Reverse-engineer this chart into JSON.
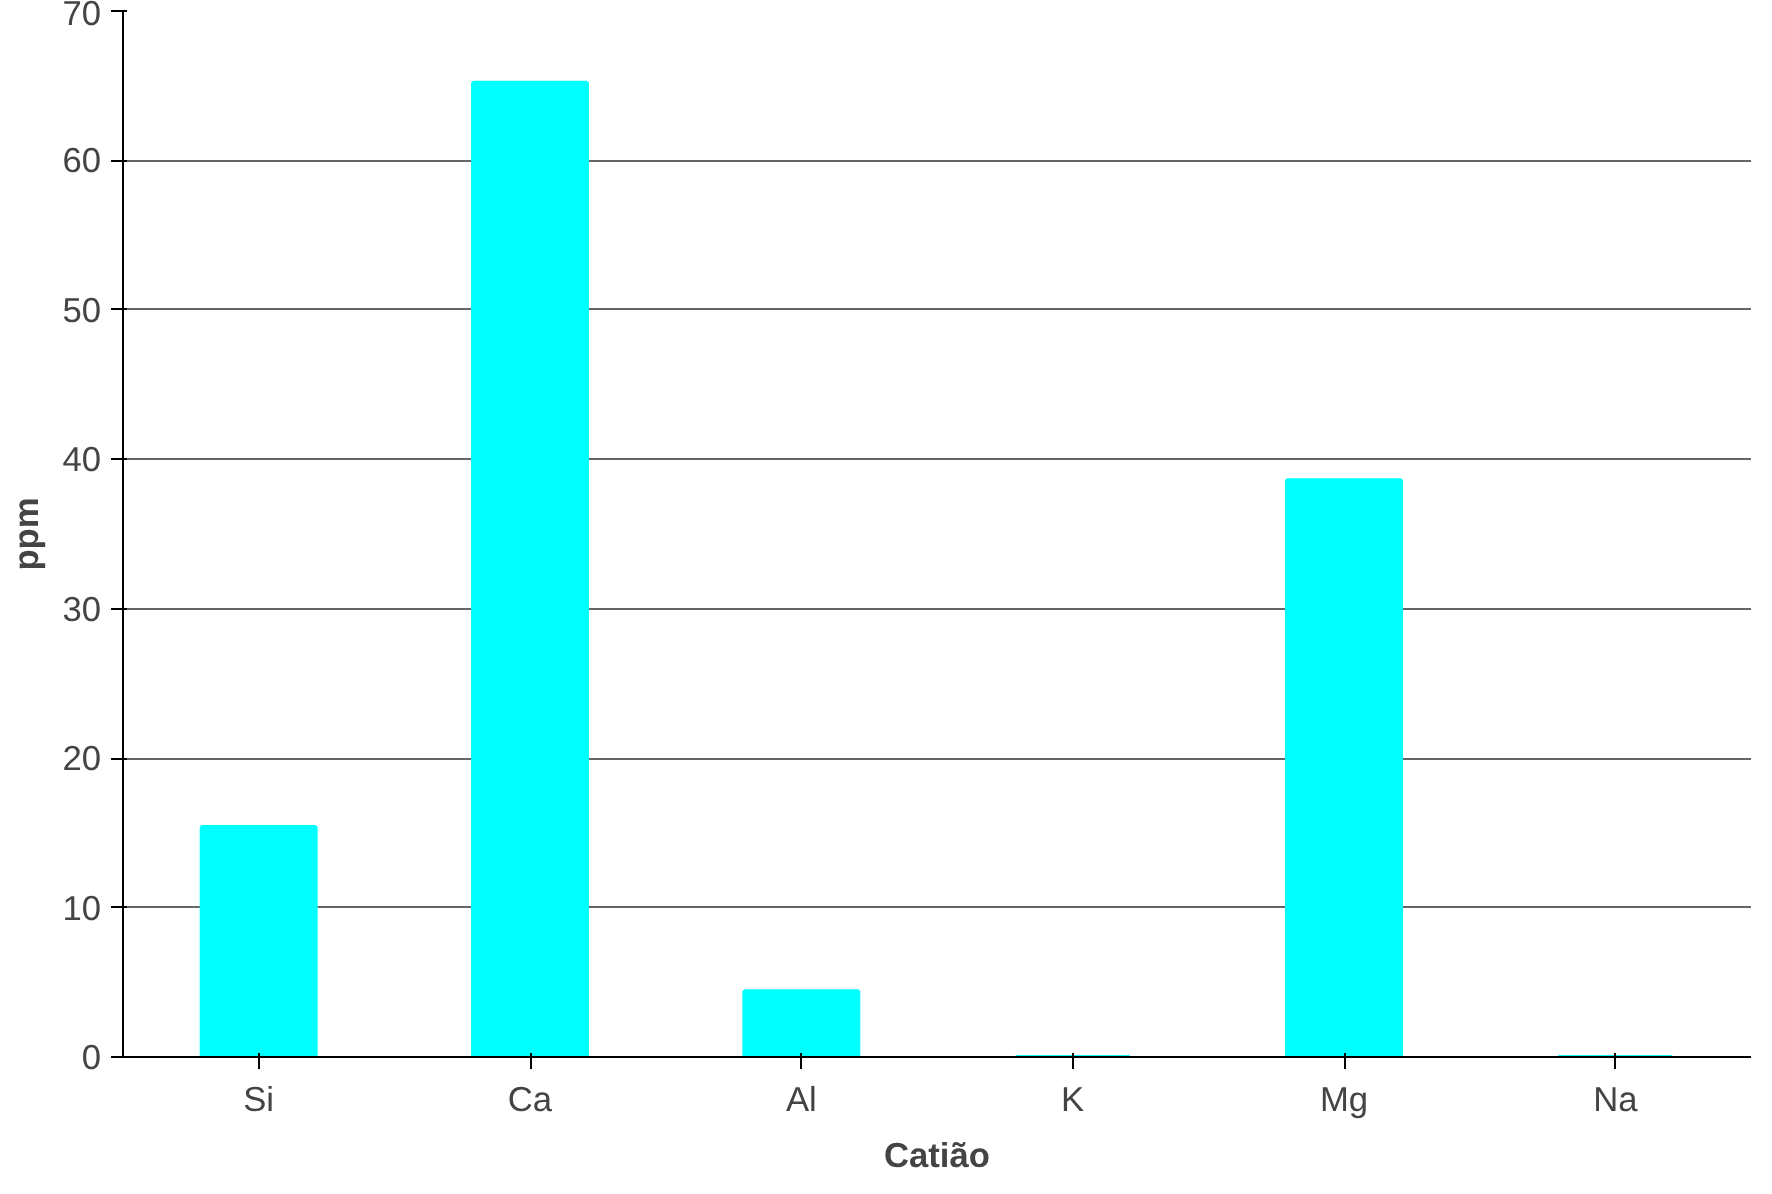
{
  "chart_data": {
    "type": "bar",
    "xlabel": "Catião",
    "ylabel": "ppm",
    "categories": [
      "Si",
      "Ca",
      "Al",
      "K",
      "Mg",
      "Na"
    ],
    "values": [
      15.4,
      65.2,
      4.4,
      0,
      38.6,
      0
    ],
    "color": "#00ffff",
    "ylim": [
      0,
      70
    ],
    "yticks": [
      0,
      10,
      20,
      30,
      40,
      50,
      60,
      70
    ],
    "grid": "y"
  }
}
